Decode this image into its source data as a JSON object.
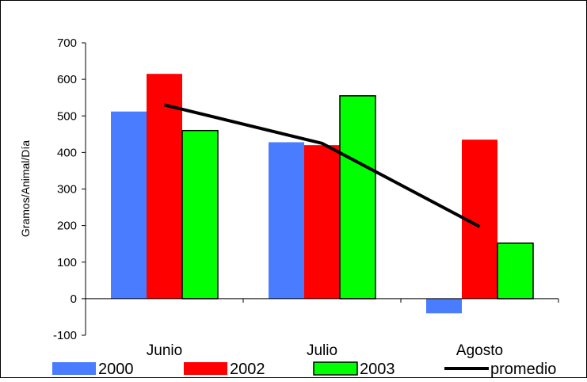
{
  "chart_data": {
    "type": "bar",
    "categories": [
      "Junio",
      "Julio",
      "Agosto"
    ],
    "series": [
      {
        "name": "2000",
        "values": [
          512,
          428,
          -40
        ],
        "color": "#4a7cff"
      },
      {
        "name": "2002",
        "values": [
          615,
          420,
          435
        ],
        "color": "#ff0000"
      },
      {
        "name": "2003",
        "values": [
          460,
          555,
          152
        ],
        "color": "#00ff00"
      }
    ],
    "line_series": {
      "name": "promedio",
      "values": [
        530,
        425,
        197
      ],
      "color": "#000000"
    },
    "ylabel": "Gramos/Animal/Día",
    "ylim": [
      -100,
      700
    ],
    "yticks": [
      -100,
      0,
      100,
      200,
      300,
      400,
      500,
      600,
      700
    ],
    "legend_position": "bottom",
    "grid": false
  }
}
